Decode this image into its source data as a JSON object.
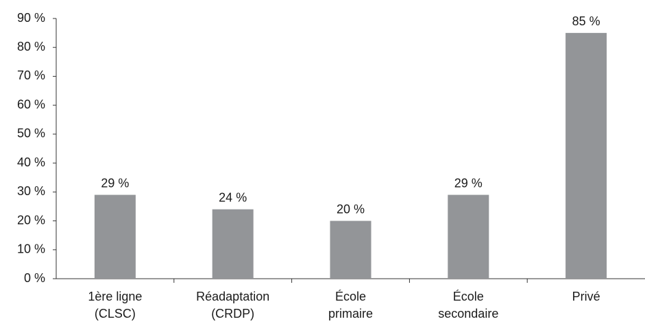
{
  "chart_data": {
    "type": "bar",
    "categories": [
      [
        "1ère ligne",
        "(CLSC)"
      ],
      [
        "Réadaptation",
        "(CRDP)"
      ],
      [
        "École",
        "primaire"
      ],
      [
        "École",
        "secondaire"
      ],
      [
        "Privé"
      ]
    ],
    "values": [
      29,
      24,
      20,
      29,
      85
    ],
    "value_labels": [
      "29 %",
      "24 %",
      "20 %",
      "29 %",
      "85 %"
    ],
    "color": "#939598",
    "ylim": [
      0,
      90
    ],
    "yticks": [
      {
        "value": 0,
        "label": "0 %"
      },
      {
        "value": 10,
        "label": "10 %"
      },
      {
        "value": 20,
        "label": "20 %"
      },
      {
        "value": 30,
        "label": "30 %"
      },
      {
        "value": 40,
        "label": "40 %"
      },
      {
        "value": 50,
        "label": "50 %"
      },
      {
        "value": 60,
        "label": "60 %"
      },
      {
        "value": 70,
        "label": "70 %"
      },
      {
        "value": 80,
        "label": "80 %"
      },
      {
        "value": 90,
        "label": "90 %"
      }
    ]
  }
}
